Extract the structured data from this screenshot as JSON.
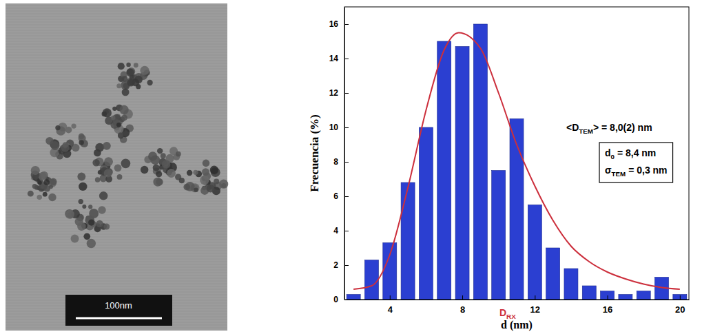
{
  "chart_data": {
    "type": "histogram",
    "bins": [
      1.5,
      2.5,
      3.5,
      4.5,
      5.5,
      6.5,
      7.5,
      8.5,
      9.5,
      10.5,
      11.5,
      12.5,
      13.5,
      14.5,
      15.5,
      16.5,
      17.5,
      18.5,
      19.5,
      20.5
    ],
    "values": [
      0.3,
      2.3,
      3.3,
      6.8,
      10,
      15,
      14.7,
      16,
      7.5,
      10.5,
      5.5,
      3,
      1.8,
      0.8,
      0.5,
      0.3,
      0.5,
      1.3,
      0.3
    ],
    "color": "#2b3fd1",
    "xlim": [
      1.5,
      20.5
    ],
    "ylim": [
      0,
      17
    ],
    "xticks": [
      4,
      8,
      12,
      16,
      20
    ],
    "yticks": [
      0,
      2,
      4,
      6,
      8,
      10,
      12,
      14,
      16
    ],
    "x_label": "d (nm)",
    "y_label": "Frecuencia (%)",
    "series": [
      {
        "type": "line",
        "color": "#cc2f3c",
        "x": [
          2,
          3,
          4,
          5,
          6,
          7,
          7.8,
          9,
          10,
          11,
          12,
          13,
          14,
          15,
          16,
          17,
          18,
          19,
          20
        ],
        "values": [
          0.6,
          0.8,
          2.6,
          6.5,
          11,
          14.5,
          15.5,
          14.6,
          12,
          9,
          6.6,
          4.6,
          3.1,
          2.2,
          1.6,
          1.2,
          0.9,
          0.7,
          0.6
        ]
      }
    ],
    "annotations": [
      {
        "parts": [
          {
            "text": "<D"
          },
          {
            "text": "TEM",
            "sub": true
          },
          {
            "text": "> = 8,0(2) nm"
          }
        ]
      },
      {
        "parts": [
          {
            "text": "d"
          },
          {
            "text": "0",
            "sub": true
          },
          {
            "text": " = 8,4 nm"
          }
        ]
      },
      {
        "parts": [
          {
            "text": "σ"
          },
          {
            "text": "TEM",
            "sub": true
          },
          {
            "text": " = 0,3 nm"
          }
        ]
      },
      {
        "parts": [
          {
            "text": "D"
          },
          {
            "text": "RX",
            "sub": true
          }
        ],
        "x": 10.5,
        "color": "#cc2f3c"
      }
    ]
  },
  "micrograph": {
    "scale_bar_label": "100nm"
  }
}
